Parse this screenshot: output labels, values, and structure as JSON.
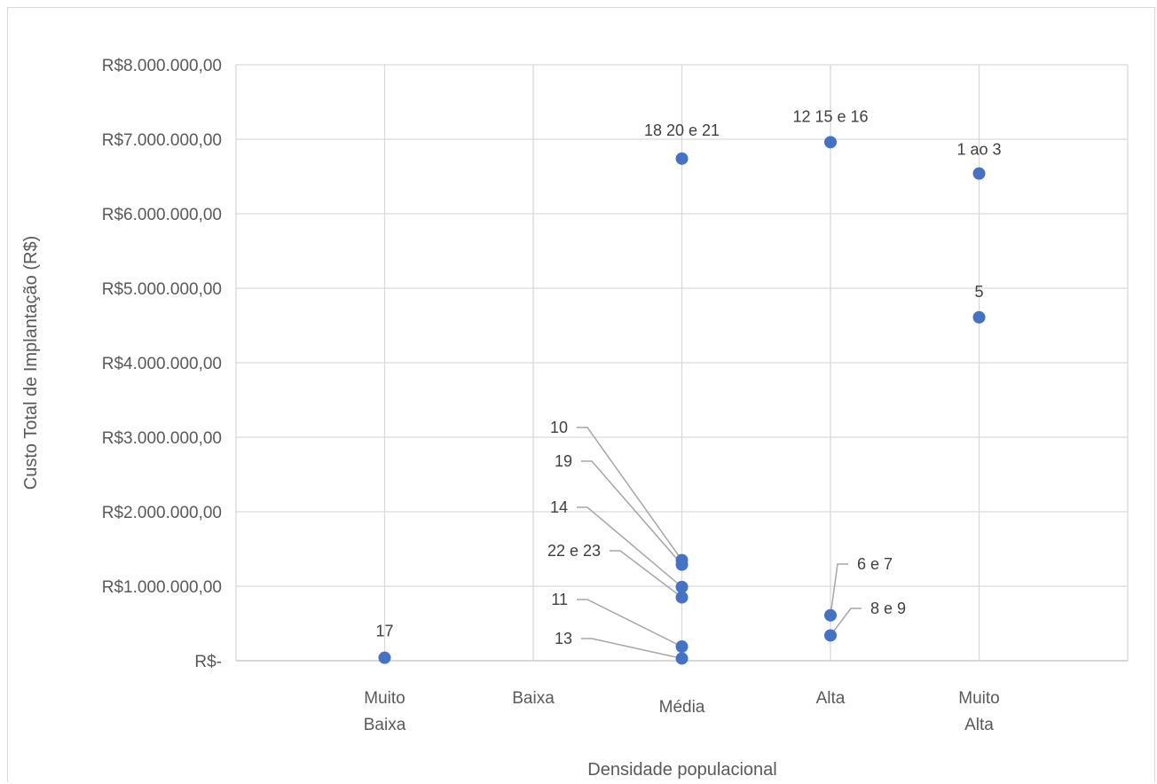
{
  "chart_data": {
    "type": "scatter",
    "title": "",
    "xlabel": "Densidade populacional",
    "ylabel": "Custo Total de Implantação (R$)",
    "categories": [
      "Muito Baixa",
      "Baixa",
      "Média",
      "Alta",
      "Muito Alta"
    ],
    "category_lines": [
      [
        "Muito",
        "Baixa"
      ],
      [
        "Baixa"
      ],
      [
        "Média"
      ],
      [
        "Alta"
      ],
      [
        "Muito",
        "Alta"
      ]
    ],
    "ylim": [
      0,
      8000000
    ],
    "yticks": [
      0,
      1000000,
      2000000,
      3000000,
      4000000,
      5000000,
      6000000,
      7000000,
      8000000
    ],
    "ytick_labels": [
      "R$-",
      "R$1.000.000,00",
      "R$2.000.000,00",
      "R$3.000.000,00",
      "R$4.000.000,00",
      "R$5.000.000,00",
      "R$6.000.000,00",
      "R$7.000.000,00",
      "R$8.000.000,00"
    ],
    "grid": true,
    "marker_color": "#4472c4",
    "points": [
      {
        "category": "Muito Baixa",
        "y": 40000,
        "label": "17"
      },
      {
        "category": "Média",
        "y": 6740000,
        "label": "18 20 e 21"
      },
      {
        "category": "Média",
        "y": 1350000,
        "label": "10"
      },
      {
        "category": "Média",
        "y": 1290000,
        "label": "19"
      },
      {
        "category": "Média",
        "y": 990000,
        "label": "14"
      },
      {
        "category": "Média",
        "y": 850000,
        "label": "22 e 23"
      },
      {
        "category": "Média",
        "y": 190000,
        "label": "11"
      },
      {
        "category": "Média",
        "y": 30000,
        "label": "13"
      },
      {
        "category": "Alta",
        "y": 6960000,
        "label": "12 15 e 16"
      },
      {
        "category": "Alta",
        "y": 610000,
        "label": "6 e 7"
      },
      {
        "category": "Alta",
        "y": 340000,
        "label": "8 e 9"
      },
      {
        "category": "Muito Alta",
        "y": 6540000,
        "label": "1 ao 3"
      },
      {
        "category": "Muito Alta",
        "y": 4610000,
        "label": "5"
      }
    ]
  }
}
